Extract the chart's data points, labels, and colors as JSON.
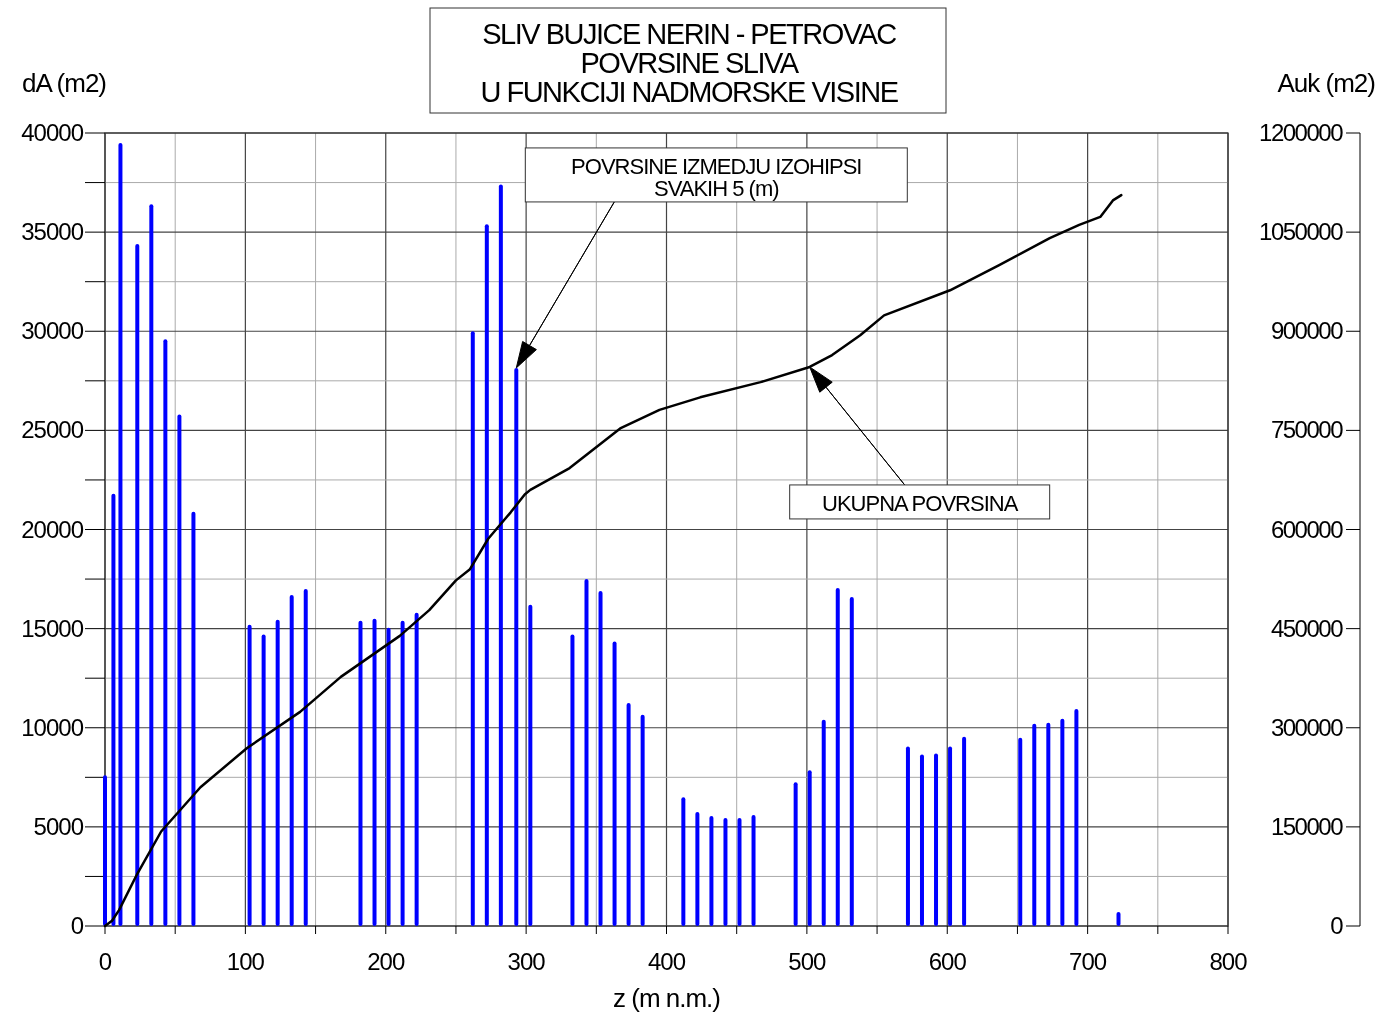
{
  "chart_data": {
    "type": "bar",
    "title": "SLIV BUJICE NERIN - PETROVAC\nPOVRSINE SLIVA\nU FUNKCIJI NADMORSKE VISINE",
    "xlabel": "z (m n.m.)",
    "ylabel": "dA (m2)",
    "y2label": "Auk (m2)",
    "x": [
      0,
      6,
      11,
      23,
      33,
      43,
      53,
      63,
      103,
      113,
      123,
      133,
      143,
      182,
      192,
      202,
      212,
      222,
      262,
      272,
      282,
      293,
      303,
      333,
      343,
      353,
      363,
      373,
      383,
      412,
      422,
      432,
      442,
      452,
      462,
      492,
      502,
      512,
      522,
      532,
      572,
      582,
      592,
      602,
      612,
      652,
      662,
      672,
      682,
      692,
      722
    ],
    "series": [
      {
        "color": "#0000ff",
        "values": [
          7600,
          21800,
          39500,
          34400,
          36400,
          29600,
          25800,
          20900,
          15200,
          14700,
          15450,
          16700,
          17000,
          15400,
          15500,
          15050,
          15400,
          15800,
          30000,
          35400,
          37400,
          28150,
          16200,
          14700,
          17500,
          16900,
          14350,
          11250,
          10650,
          6500,
          5750,
          5550,
          5450,
          5450,
          5600,
          7250,
          7850,
          10400,
          17050,
          16600,
          9050,
          8650,
          8700,
          9050,
          9550,
          9500,
          10200,
          10250,
          10450,
          10950,
          700
        ]
      },
      {
        "type": "line",
        "axis": "y2",
        "color": "#000000",
        "x": [
          0,
          5,
          10,
          23,
          40,
          68,
          101,
          139,
          168,
          210,
          231,
          250,
          260,
          273,
          289,
          299,
          303,
          331,
          367,
          395,
          424,
          467,
          502,
          518,
          538,
          555,
          602,
          637,
          673,
          694,
          709,
          718,
          724
        ],
        "values": [
          0,
          8000,
          24000,
          79000,
          143000,
          210000,
          269000,
          324000,
          377000,
          439000,
          478000,
          523000,
          540000,
          586000,
          626000,
          653000,
          660000,
          693000,
          753000,
          781000,
          800000,
          823000,
          846000,
          864000,
          894000,
          924000,
          962000,
          1000000,
          1041000,
          1061000,
          1073000,
          1098000,
          1106000
        ]
      }
    ],
    "xlim": [
      0,
      800
    ],
    "xticks": [
      0,
      {
        "value": 50,
        "label": null
      },
      100,
      {
        "value": 150,
        "label": null
      },
      200,
      {
        "value": 250,
        "label": null
      },
      300,
      {
        "value": 350,
        "label": null
      },
      400,
      {
        "value": 450,
        "label": null
      },
      500,
      {
        "value": 550,
        "label": null
      },
      600,
      {
        "value": 650,
        "label": null
      },
      700,
      {
        "value": 750,
        "label": null
      },
      800
    ],
    "ylim": [
      0,
      40000
    ],
    "yticks": [
      0,
      {
        "value": 2500,
        "label": null
      },
      5000,
      {
        "value": 7500,
        "label": null
      },
      10000,
      {
        "value": 12500,
        "label": null
      },
      15000,
      {
        "value": 17500,
        "label": null
      },
      20000,
      {
        "value": 22500,
        "label": null
      },
      25000,
      {
        "value": 27500,
        "label": null
      },
      30000,
      {
        "value": 32500,
        "label": null
      },
      35000,
      {
        "value": 37500,
        "label": null
      },
      40000
    ],
    "y2lim": [
      0,
      1200000
    ],
    "y2ticks": [
      0,
      150000,
      300000,
      450000,
      600000,
      750000,
      900000,
      1050000,
      1200000
    ],
    "grid": true,
    "annotations": [
      "POVRSINE IZMEDJU IZOHIPSI\nSVAKIH 5 (m)",
      "UKUPNA POVRSINA"
    ]
  }
}
